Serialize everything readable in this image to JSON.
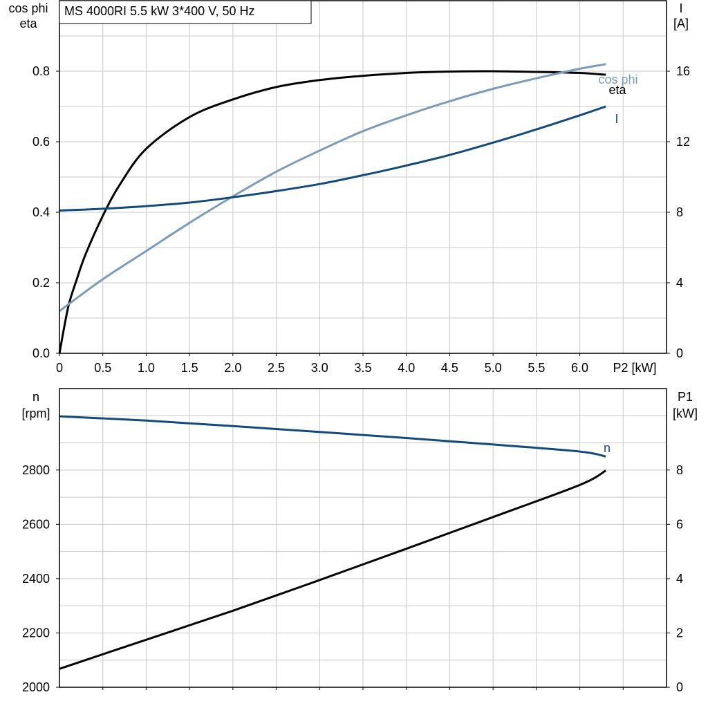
{
  "title": "MS 4000RI   5.5 kW   3*400 V, 50 Hz",
  "chart_data": [
    {
      "type": "line",
      "title": "MS 4000RI   5.5 kW   3*400 V, 50 Hz",
      "xlabel": "P2 [kW]",
      "ylabel_left": [
        "cos phi",
        "eta"
      ],
      "ylabel_right": [
        "I",
        "[A]"
      ],
      "xlim": [
        0,
        7
      ],
      "ylim_left": [
        0,
        1.0
      ],
      "ylim_right": [
        0,
        20
      ],
      "x_ticks": [
        "0",
        "0.5",
        "1.0",
        "1.5",
        "2.0",
        "2.5",
        "3.0",
        "3.5",
        "4.0",
        "4.5",
        "5.0",
        "5.5",
        "6.0"
      ],
      "y_ticks_left": [
        "0.0",
        "0.2",
        "0.4",
        "0.6",
        "0.8"
      ],
      "y_ticks_right": [
        "0",
        "4",
        "8",
        "12",
        "16"
      ],
      "grid": true,
      "colors": {
        "eta": "#000000",
        "cos_phi": "#7a9cba",
        "I": "#134a7c"
      },
      "series": [
        {
          "name": "eta",
          "axis": "left",
          "x": [
            0,
            0.1,
            0.2,
            0.3,
            0.5,
            0.7,
            1.0,
            1.5,
            2.0,
            2.5,
            3.0,
            3.5,
            4.0,
            4.5,
            5.0,
            5.5,
            6.0,
            6.3
          ],
          "y": [
            0,
            0.13,
            0.21,
            0.28,
            0.39,
            0.48,
            0.58,
            0.67,
            0.72,
            0.755,
            0.775,
            0.787,
            0.795,
            0.799,
            0.8,
            0.798,
            0.795,
            0.79
          ]
        },
        {
          "name": "cos phi",
          "axis": "left",
          "x": [
            0,
            0.5,
            1.0,
            1.5,
            2.0,
            2.5,
            3.0,
            3.5,
            4.0,
            4.5,
            5.0,
            5.5,
            6.0,
            6.3
          ],
          "y": [
            0.12,
            0.21,
            0.29,
            0.37,
            0.445,
            0.515,
            0.575,
            0.63,
            0.675,
            0.715,
            0.75,
            0.78,
            0.807,
            0.82
          ]
        },
        {
          "name": "I",
          "axis": "right",
          "x": [
            0,
            0.5,
            1.0,
            1.5,
            2.0,
            2.5,
            3.0,
            3.5,
            4.0,
            4.5,
            5.0,
            5.5,
            6.0,
            6.3
          ],
          "y": [
            8.1,
            8.2,
            8.35,
            8.55,
            8.85,
            9.2,
            9.6,
            10.1,
            10.65,
            11.25,
            11.95,
            12.7,
            13.5,
            14.0
          ]
        }
      ]
    },
    {
      "type": "line",
      "xlabel": "",
      "ylabel_left": [
        "n",
        "[rpm]"
      ],
      "ylabel_right": [
        "P1",
        "[kW]"
      ],
      "xlim": [
        0,
        7
      ],
      "ylim_left": [
        2000,
        3100
      ],
      "ylim_right": [
        0,
        11
      ],
      "y_ticks_left": [
        "2000",
        "2200",
        "2400",
        "2600",
        "2800"
      ],
      "y_ticks_right": [
        "0",
        "2",
        "4",
        "6",
        "8"
      ],
      "grid": true,
      "colors": {
        "n": "#134a7c",
        "P1": "#000000"
      },
      "series": [
        {
          "name": "n",
          "axis": "left",
          "x": [
            0,
            1,
            2,
            3,
            4,
            5,
            6,
            6.3
          ],
          "y": [
            2998,
            2982,
            2962,
            2940,
            2918,
            2894,
            2868,
            2850
          ]
        },
        {
          "axis": "right",
          "x": [
            0,
            1,
            2,
            3,
            4,
            5,
            6,
            6.3
          ],
          "y": [
            0.68,
            1.75,
            2.82,
            3.95,
            5.1,
            6.27,
            7.45,
            7.98
          ]
        }
      ]
    }
  ]
}
